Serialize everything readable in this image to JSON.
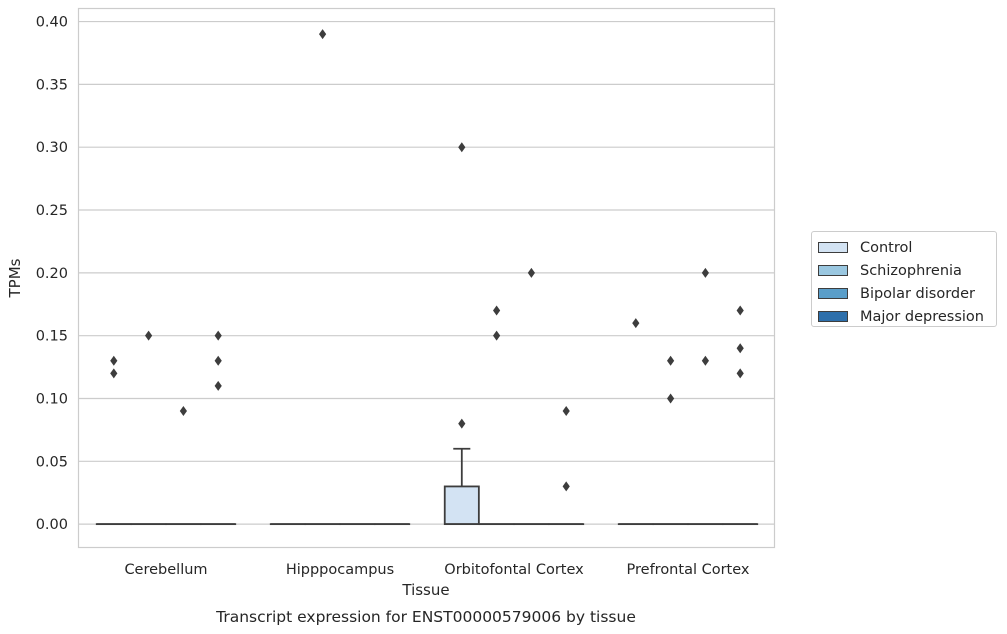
{
  "chart_data": {
    "type": "box",
    "title": "Transcript expression for ENST00000579006 by tissue",
    "xlabel": "Tissue",
    "ylabel": "TPMs",
    "ylim": [
      -0.019,
      0.41
    ],
    "yticks": [
      "0.00",
      "0.05",
      "0.10",
      "0.15",
      "0.20",
      "0.25",
      "0.30",
      "0.35",
      "0.40"
    ],
    "grid": true,
    "legend_position": "right",
    "categories": [
      "Cerebellum",
      "Hipppocampus",
      "Orbitofontal Cortex",
      "Prefrontal Cortex"
    ],
    "series": [
      {
        "name": "Control",
        "color": "#d3e3f3",
        "boxes": [
          {
            "q1": 0,
            "median": 0,
            "q3": 0,
            "whisker_low": 0,
            "whisker_high": 0,
            "outliers": [
              0.13,
              0.12
            ]
          },
          {
            "q1": 0,
            "median": 0,
            "q3": 0,
            "whisker_low": 0,
            "whisker_high": 0,
            "outliers": []
          },
          {
            "q1": 0,
            "median": 0,
            "q3": 0.03,
            "whisker_low": 0,
            "whisker_high": 0.06,
            "outliers": [
              0.3,
              0.08
            ]
          },
          {
            "q1": 0,
            "median": 0,
            "q3": 0,
            "whisker_low": 0,
            "whisker_high": 0,
            "outliers": [
              0.16
            ]
          }
        ]
      },
      {
        "name": "Schizophrenia",
        "color": "#9ac7e0",
        "boxes": [
          {
            "q1": 0,
            "median": 0,
            "q3": 0,
            "whisker_low": 0,
            "whisker_high": 0,
            "outliers": [
              0.15
            ]
          },
          {
            "q1": 0,
            "median": 0,
            "q3": 0,
            "whisker_low": 0,
            "whisker_high": 0,
            "outliers": [
              0.39
            ]
          },
          {
            "q1": 0,
            "median": 0,
            "q3": 0,
            "whisker_low": 0,
            "whisker_high": 0,
            "outliers": [
              0.17,
              0.15
            ]
          },
          {
            "q1": 0,
            "median": 0,
            "q3": 0,
            "whisker_low": 0,
            "whisker_high": 0,
            "outliers": [
              0.13,
              0.1
            ]
          }
        ]
      },
      {
        "name": "Bipolar disorder",
        "color": "#5a9ec9",
        "boxes": [
          {
            "q1": 0,
            "median": 0,
            "q3": 0,
            "whisker_low": 0,
            "whisker_high": 0,
            "outliers": [
              0.09
            ]
          },
          {
            "q1": 0,
            "median": 0,
            "q3": 0,
            "whisker_low": 0,
            "whisker_high": 0,
            "outliers": []
          },
          {
            "q1": 0,
            "median": 0,
            "q3": 0,
            "whisker_low": 0,
            "whisker_high": 0,
            "outliers": [
              0.2
            ]
          },
          {
            "q1": 0,
            "median": 0,
            "q3": 0,
            "whisker_low": 0,
            "whisker_high": 0,
            "outliers": [
              0.2,
              0.13
            ]
          }
        ]
      },
      {
        "name": "Major depression",
        "color": "#2d6fab",
        "boxes": [
          {
            "q1": 0,
            "median": 0,
            "q3": 0,
            "whisker_low": 0,
            "whisker_high": 0,
            "outliers": [
              0.15,
              0.13,
              0.11
            ]
          },
          {
            "q1": 0,
            "median": 0,
            "q3": 0,
            "whisker_low": 0,
            "whisker_high": 0,
            "outliers": []
          },
          {
            "q1": 0,
            "median": 0,
            "q3": 0,
            "whisker_low": 0,
            "whisker_high": 0,
            "outliers": [
              0.09,
              0.03
            ]
          },
          {
            "q1": 0,
            "median": 0,
            "q3": 0,
            "whisker_low": 0,
            "whisker_high": 0,
            "outliers": [
              0.17,
              0.14,
              0.12
            ]
          }
        ]
      }
    ]
  }
}
